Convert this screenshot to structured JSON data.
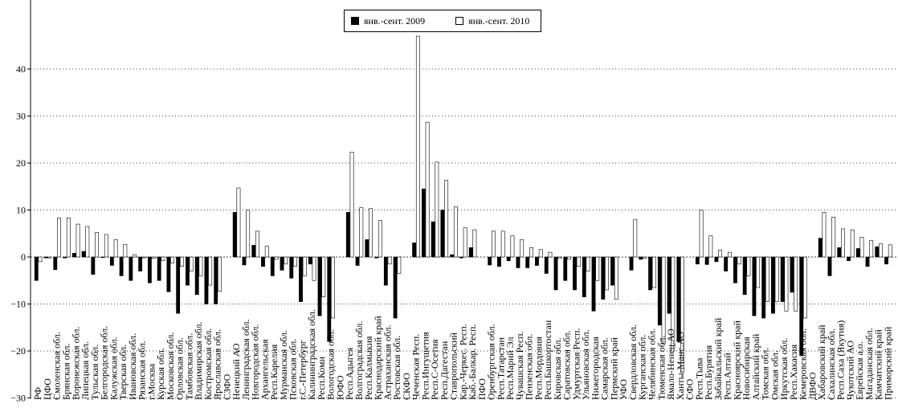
{
  "chart_data": {
    "type": "bar",
    "ylim": [
      -30,
      47
    ],
    "yticks": [
      40,
      30,
      20,
      10,
      0,
      -10,
      -20,
      -30
    ],
    "ytick_labels": [
      "40",
      "30",
      "20",
      "10",
      "0",
      "−10",
      "−20",
      "−30"
    ],
    "legend_position": "top-center",
    "series": [
      {
        "name": "янв.-сент. 2009",
        "color": "#000000"
      },
      {
        "name": "янв.-сент. 2010",
        "color": "#ffffff"
      }
    ],
    "categories": [
      {
        "label": "РФ",
        "v2009": -5.0,
        "v2010": -1.0
      },
      {
        "label": "ЦФО",
        "v2009": -0.2,
        "v2010": -0.2
      },
      {
        "label": "Смоленская обл.",
        "v2009": -2.7,
        "v2010": 8.3
      },
      {
        "label": "Брянская обл.",
        "v2009": -0.2,
        "v2010": 8.3
      },
      {
        "label": "Воронежская обл.",
        "v2009": 0.8,
        "v2010": 7.0
      },
      {
        "label": "Липецкая обл.",
        "v2009": 1.2,
        "v2010": 6.5
      },
      {
        "label": "Тульская обл.",
        "v2009": -3.7,
        "v2010": 5.2
      },
      {
        "label": "Белгородская обл.",
        "v2009": -0.1,
        "v2010": 4.8
      },
      {
        "label": "Калужская обл.",
        "v2009": -1.8,
        "v2010": 3.7
      },
      {
        "label": "Тверская обл.",
        "v2009": -4.0,
        "v2010": 2.7
      },
      {
        "label": "Ивановская обл.",
        "v2009": -5.0,
        "v2010": 0.5
      },
      {
        "label": "Рязанская обл.",
        "v2009": -3.0,
        "v2010": -0.2
      },
      {
        "label": "г.Москва",
        "v2009": -5.5,
        "v2010": -0.3
      },
      {
        "label": "Курская обл.",
        "v2009": -5.0,
        "v2010": -0.8
      },
      {
        "label": "Московская обл.",
        "v2009": -7.4,
        "v2010": -1.3
      },
      {
        "label": "Орловская обл.",
        "v2009": -12.0,
        "v2010": -2.0
      },
      {
        "label": "Тамбовская обл.",
        "v2009": -6.0,
        "v2010": -3.0
      },
      {
        "label": "Владимирская обл.",
        "v2009": -8.0,
        "v2010": -4.0
      },
      {
        "label": "Костромская обл.",
        "v2009": -10.0,
        "v2010": -6.0
      },
      {
        "label": "Ярославская обл.",
        "v2009": -10.0,
        "v2010": -7.3
      },
      {
        "label": "СЗФО",
        "v2009": 0.0,
        "v2010": 0.0
      },
      {
        "label": "Ненецкий АО",
        "v2009": 9.5,
        "v2010": 14.7
      },
      {
        "label": "Ленинградская обл.",
        "v2009": -1.7,
        "v2010": 10.0
      },
      {
        "label": "Новгородская обл.",
        "v2009": 2.5,
        "v2010": 5.5
      },
      {
        "label": "Архангельская",
        "v2009": -2.0,
        "v2010": 2.3
      },
      {
        "label": "Респ.Карелия",
        "v2009": -4.0,
        "v2010": -0.5
      },
      {
        "label": "Мурманская обл.",
        "v2009": -2.8,
        "v2010": -1.5
      },
      {
        "label": "Псковская обл.",
        "v2009": -4.5,
        "v2010": -2.0
      },
      {
        "label": "г.С.-Петербург",
        "v2009": -9.5,
        "v2010": -4.0
      },
      {
        "label": "Калининградская обл.",
        "v2009": -1.5,
        "v2010": -5.0
      },
      {
        "label": "Респ.Коми",
        "v2009": -12.5,
        "v2010": -8.5
      },
      {
        "label": "Вологодская обл.",
        "v2009": -18.0,
        "v2010": -13.0
      },
      {
        "label": "ЮФО",
        "v2009": 0.0,
        "v2010": 0.0
      },
      {
        "label": "Респ.Адыгея",
        "v2009": 9.5,
        "v2010": 22.3
      },
      {
        "label": "Волгоградская обл.",
        "v2009": -1.8,
        "v2010": 10.5
      },
      {
        "label": "Респ.Калмыкия",
        "v2009": 3.7,
        "v2010": 10.3
      },
      {
        "label": "Краснодарский край",
        "v2009": -0.2,
        "v2010": 7.8
      },
      {
        "label": "Астраханская обл.",
        "v2009": -6.0,
        "v2010": -1.5
      },
      {
        "label": "Ростовская обл.",
        "v2009": -13.0,
        "v2010": -3.5
      },
      {
        "label": "СКФО",
        "v2009": 0.0,
        "v2010": 0.0
      },
      {
        "label": "Чеченская Респ.",
        "v2009": 3.0,
        "v2010": 47.0
      },
      {
        "label": "Респ.Ингушетия",
        "v2009": 14.5,
        "v2010": 28.7
      },
      {
        "label": "Респ.С-Осетия",
        "v2009": 7.5,
        "v2010": 20.2
      },
      {
        "label": "Респ.Дагестан",
        "v2009": 10.0,
        "v2010": 16.3
      },
      {
        "label": "Ставропольский",
        "v2009": 0.5,
        "v2010": 10.7
      },
      {
        "label": "Кар.-Черкес. Респ.",
        "v2009": -0.2,
        "v2010": 6.2
      },
      {
        "label": "Каб.-Балкар. Респ.",
        "v2009": 2.0,
        "v2010": 5.8
      },
      {
        "label": "ПФО",
        "v2009": 0.0,
        "v2010": 0.0
      },
      {
        "label": "Оренбургская обл.",
        "v2009": -1.7,
        "v2010": 5.5
      },
      {
        "label": "Респ.Татарстан",
        "v2009": -2.0,
        "v2010": 5.5
      },
      {
        "label": "Респ.Марий Эл",
        "v2009": -0.8,
        "v2010": 4.5
      },
      {
        "label": "Чувашская Респ.",
        "v2009": -2.3,
        "v2010": 3.7
      },
      {
        "label": "Пензенская обл.",
        "v2009": -2.3,
        "v2010": 2.0
      },
      {
        "label": "Респ.Мордовия",
        "v2009": -1.8,
        "v2010": 1.6
      },
      {
        "label": "Респ.Башкортостан",
        "v2009": -3.5,
        "v2010": 1.0
      },
      {
        "label": "Кировская обл.",
        "v2009": -7.0,
        "v2010": -0.3
      },
      {
        "label": "Саратовская обл.",
        "v2009": -5.0,
        "v2010": -0.5
      },
      {
        "label": "Удмуртская Респ.",
        "v2009": -7.0,
        "v2010": -2.0
      },
      {
        "label": "Ульяновская обл.",
        "v2009": -8.5,
        "v2010": -3.0
      },
      {
        "label": "Нижегородская",
        "v2009": -11.5,
        "v2010": -5.0
      },
      {
        "label": "Самарская обл.",
        "v2009": -9.0,
        "v2010": -7.0
      },
      {
        "label": "Пермский край",
        "v2009": -6.0,
        "v2010": -9.0
      },
      {
        "label": "УФО",
        "v2009": 0.0,
        "v2010": 0.0
      },
      {
        "label": "Свердловская обл.",
        "v2009": -2.8,
        "v2010": 8.0
      },
      {
        "label": "Курганская обл.",
        "v2009": -0.5,
        "v2010": -0.3
      },
      {
        "label": "Челябинская обл.",
        "v2009": -7.0,
        "v2010": -6.5
      },
      {
        "label": "Тюменская обл.",
        "v2009": -14.5,
        "v2010": -18.5
      },
      {
        "label": "Ямало-Ненец.АО",
        "v2009": -12.0,
        "v2010": -20.0
      },
      {
        "label": "Ханты-Манс.АО",
        "v2009": -18.0,
        "v2010": -24.5
      },
      {
        "label": "СФО",
        "v2009": 0.0,
        "v2010": 0.0
      },
      {
        "label": "Респ.Тыва",
        "v2009": -1.5,
        "v2010": 10.0
      },
      {
        "label": "Респ.Бурятия",
        "v2009": -1.6,
        "v2010": 4.5
      },
      {
        "label": "Забайкальский край",
        "v2009": -1.0,
        "v2010": 1.5
      },
      {
        "label": "Респ.Алтай",
        "v2009": -3.0,
        "v2010": 1.0
      },
      {
        "label": "Красноярский край",
        "v2009": -5.5,
        "v2010": -1.5
      },
      {
        "label": "Новосибирская",
        "v2009": -8.0,
        "v2010": -4.0
      },
      {
        "label": "Алтайский край",
        "v2009": -12.5,
        "v2010": -6.5
      },
      {
        "label": "Томская обл.",
        "v2009": -13.0,
        "v2010": -9.5
      },
      {
        "label": "Омская обл.",
        "v2009": -12.0,
        "v2010": -9.5
      },
      {
        "label": "Иркутская обл.",
        "v2009": -9.5,
        "v2010": -11.5
      },
      {
        "label": "Респ.Хакасия",
        "v2009": -7.5,
        "v2010": -11.5
      },
      {
        "label": "Кемеровская обл.",
        "v2009": -21.0,
        "v2010": -13.0
      },
      {
        "label": "ДВФО",
        "v2009": 0.0,
        "v2010": 0.0
      },
      {
        "label": "Хабаровский край",
        "v2009": 4.0,
        "v2010": 9.5
      },
      {
        "label": "Сахалинская обл.",
        "v2009": -4.0,
        "v2010": 8.5
      },
      {
        "label": "Респ.Саха (Якутия)",
        "v2009": 2.0,
        "v2010": 6.0
      },
      {
        "label": "Чукотский АО",
        "v2009": -0.8,
        "v2010": 5.8
      },
      {
        "label": "Еврейская а.о.",
        "v2009": 1.8,
        "v2010": 4.2
      },
      {
        "label": "Магаданская обл.",
        "v2009": -2.0,
        "v2010": 3.5
      },
      {
        "label": "Камчатский край",
        "v2009": 2.2,
        "v2010": 2.8
      },
      {
        "label": "Приморский край",
        "v2009": -1.5,
        "v2010": 2.6
      }
    ]
  }
}
